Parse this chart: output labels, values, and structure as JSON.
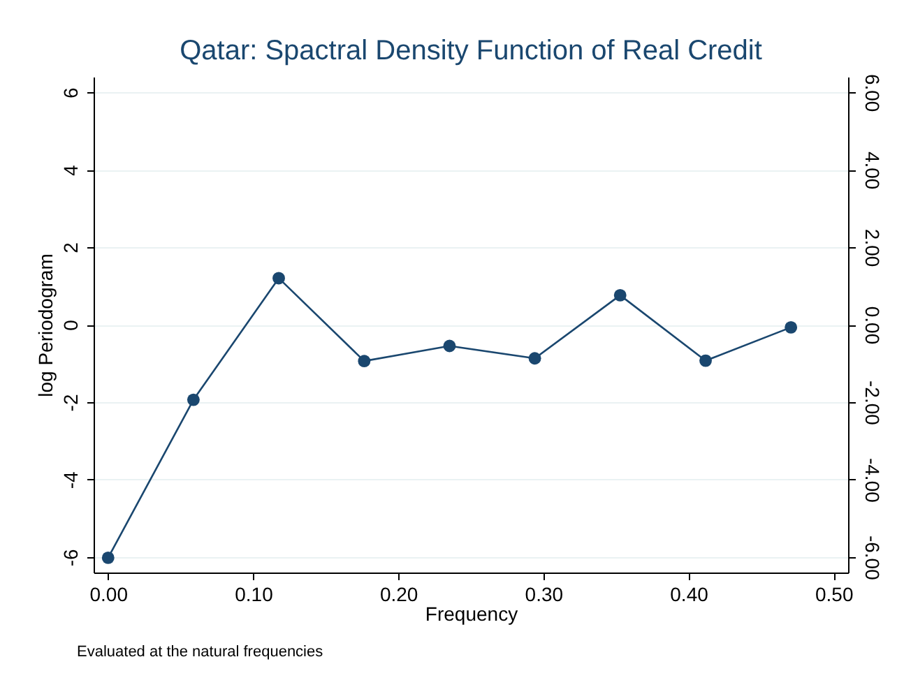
{
  "chart_data": {
    "type": "line",
    "title": "Qatar: Spactral Density Function of Real Credit",
    "xlabel": "Frequency",
    "ylabel": "log Periodogram",
    "annotations": [
      "Evaluated at the natural frequencies"
    ],
    "x": [
      0,
      0.0588,
      0.1176,
      0.1765,
      0.2353,
      0.2941,
      0.3529,
      0.4118,
      0.4706
    ],
    "series": [
      {
        "color": "#1a476f",
        "values": [
          -6.02,
          -1.94,
          1.2,
          -0.94,
          -0.55,
          -0.87,
          0.76,
          -0.93,
          -0.07
        ]
      }
    ],
    "xlim": [
      -0.01,
      0.51
    ],
    "xticks": [
      {
        "value": 0,
        "label": "0.00"
      },
      {
        "value": 0.1,
        "label": "0.10"
      },
      {
        "value": 0.2,
        "label": "0.20"
      },
      {
        "value": 0.3,
        "label": "0.30"
      },
      {
        "value": 0.4,
        "label": "0.40"
      },
      {
        "value": 0.5,
        "label": "0.50"
      }
    ],
    "ylim": [
      -6.4,
      6.4
    ],
    "yticks": [
      -6,
      -4,
      -2,
      0,
      2,
      4,
      6
    ],
    "y2lim": [
      -6.4,
      6.4
    ],
    "y2ticks": [
      {
        "value": -6,
        "label": "-6.00"
      },
      {
        "value": -4,
        "label": "-4.00"
      },
      {
        "value": -2,
        "label": "-2.00"
      },
      {
        "value": 0,
        "label": "0.00"
      },
      {
        "value": 2,
        "label": "2.00"
      },
      {
        "value": 4,
        "label": "4.00"
      },
      {
        "value": 6,
        "label": "6.00"
      }
    ],
    "grid": "y",
    "marker": "circle",
    "line_style": "solid"
  }
}
